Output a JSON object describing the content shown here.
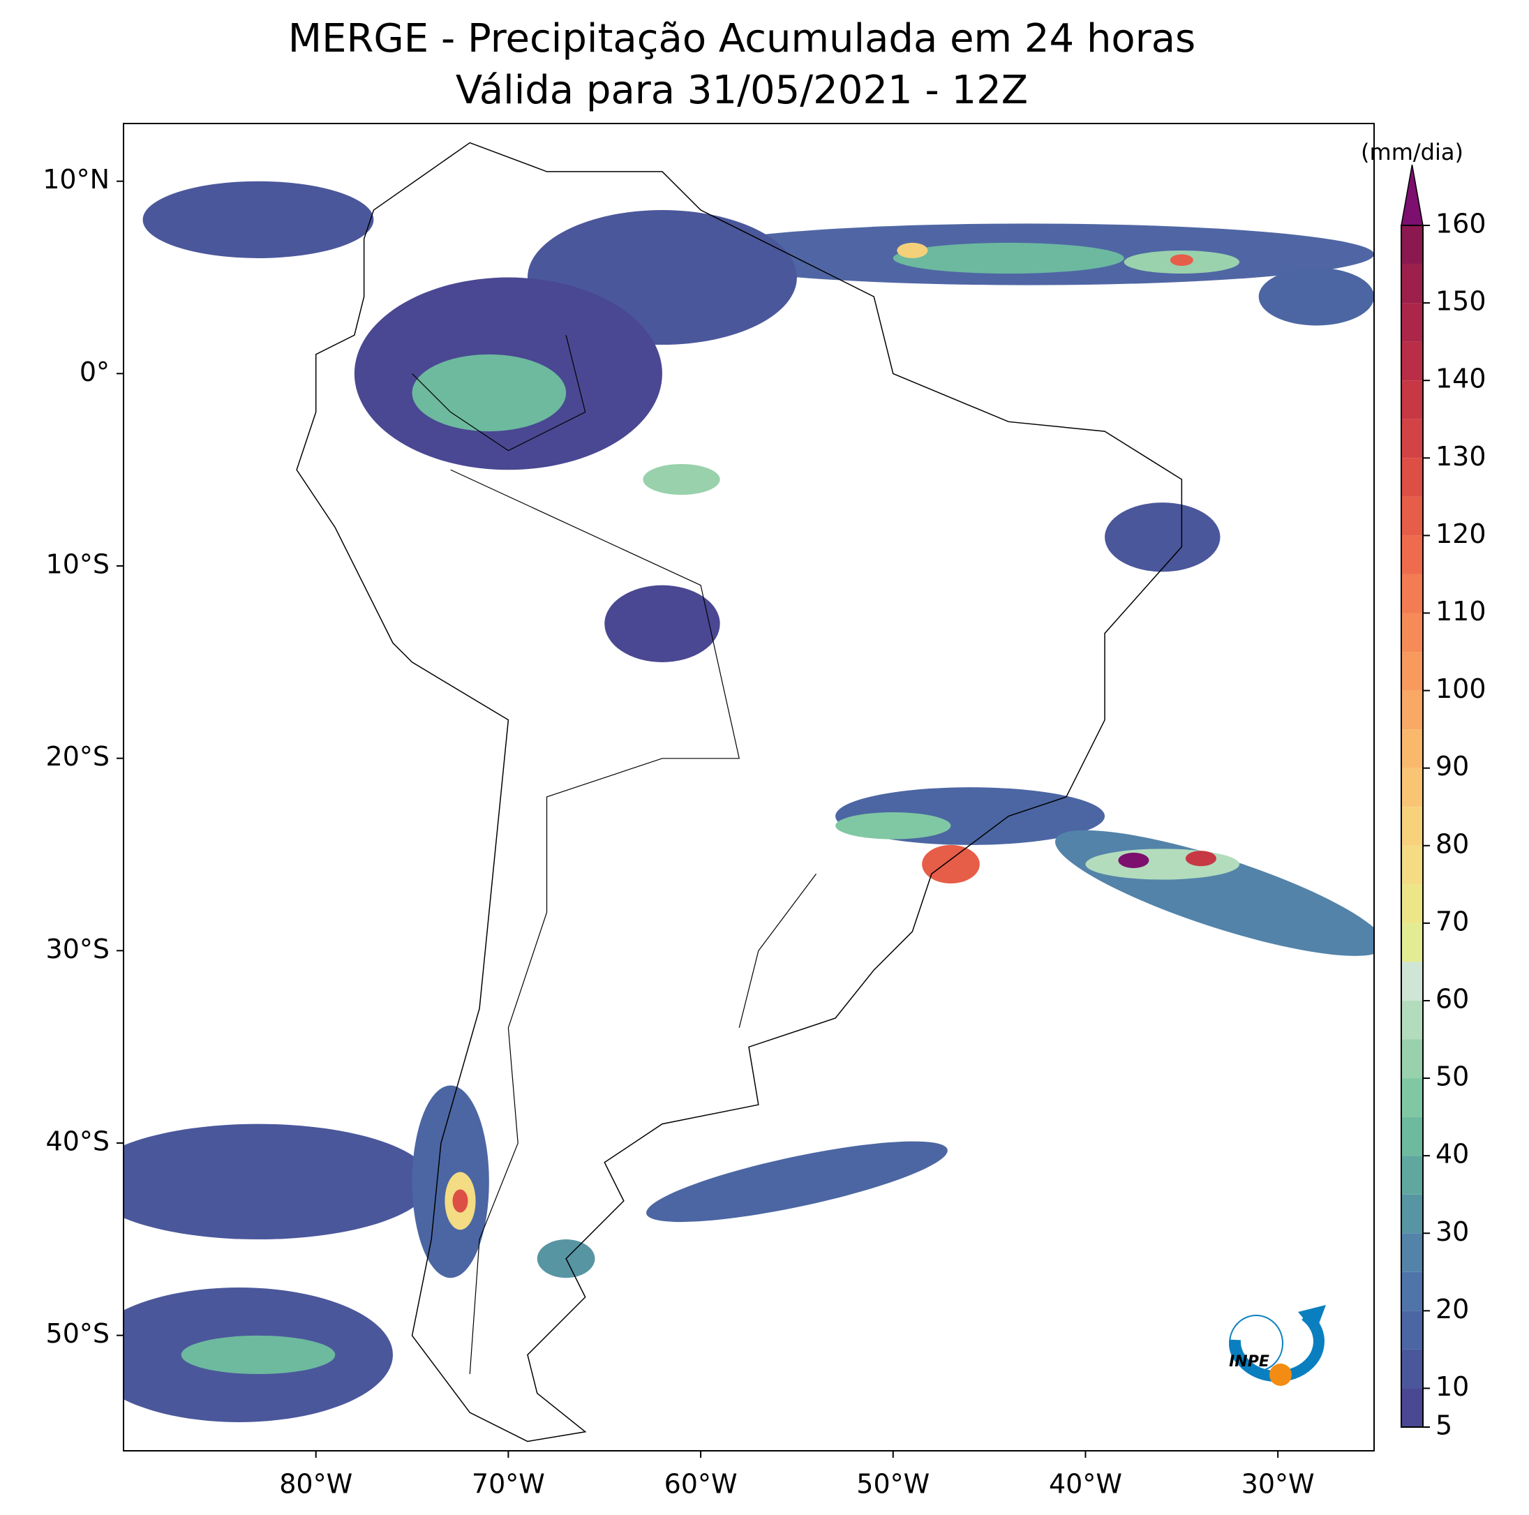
{
  "chart_data": {
    "type": "map",
    "title": "MERGE - Precipitação Acumulada em 24 horas",
    "subtitle": "Válida para 31/05/2021 - 12Z",
    "xlim": [
      -90,
      -25
    ],
    "ylim": [
      -56,
      13
    ],
    "xticks": [
      {
        "value": -80,
        "label": "80°W"
      },
      {
        "value": -70,
        "label": "70°W"
      },
      {
        "value": -60,
        "label": "60°W"
      },
      {
        "value": -50,
        "label": "50°W"
      },
      {
        "value": -40,
        "label": "40°W"
      },
      {
        "value": -30,
        "label": "30°W"
      }
    ],
    "yticks": [
      {
        "value": 10,
        "label": "10°N"
      },
      {
        "value": 0,
        "label": "0°"
      },
      {
        "value": -10,
        "label": "10°S"
      },
      {
        "value": -20,
        "label": "20°S"
      },
      {
        "value": -30,
        "label": "30°S"
      },
      {
        "value": -40,
        "label": "40°S"
      },
      {
        "value": -50,
        "label": "50°S"
      }
    ],
    "colorbar": {
      "label": "(mm/dia)",
      "ticks": [
        5,
        10,
        20,
        30,
        40,
        50,
        60,
        70,
        80,
        90,
        100,
        110,
        120,
        130,
        140,
        150,
        160
      ],
      "levels": [
        5,
        10,
        15,
        20,
        25,
        30,
        35,
        40,
        45,
        50,
        55,
        60,
        65,
        70,
        75,
        80,
        85,
        90,
        95,
        100,
        105,
        110,
        115,
        120,
        125,
        130,
        135,
        140,
        145,
        150,
        155,
        160
      ],
      "colors": [
        "#4a4892",
        "#4b579b",
        "#4c66a3",
        "#4f74a9",
        "#5383a9",
        "#5895a3",
        "#60a89f",
        "#6dba9f",
        "#80c8a3",
        "#98d1ac",
        "#b3dcbd",
        "#cfe6d6",
        "#e3ec93",
        "#ede689",
        "#f3dc83",
        "#f7d17c",
        "#f9c574",
        "#fab86c",
        "#f9a965",
        "#f89a5e",
        "#f68b58",
        "#f37c52",
        "#ee6c4d",
        "#e65d48",
        "#dd4e45",
        "#d34244",
        "#c73744",
        "#ba2d46",
        "#ab2649",
        "#9c1f4c",
        "#8c1850"
      ],
      "extend_color": "#7d0f6e"
    },
    "logo_text": "INPE"
  }
}
